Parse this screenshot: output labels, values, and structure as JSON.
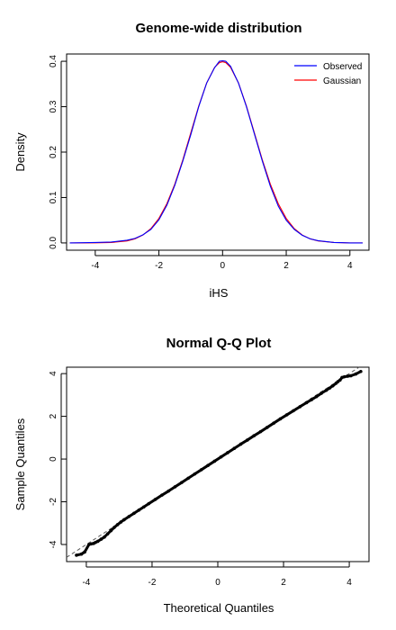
{
  "chart_data": [
    {
      "type": "line",
      "title": "Genome-wide distribution",
      "xlabel": "iHS",
      "ylabel": "Density",
      "xlim": [
        -4.9,
        4.6
      ],
      "ylim": [
        -0.016,
        0.416
      ],
      "xticks": [
        -4,
        -2,
        0,
        2,
        4
      ],
      "yticks": [
        0.0,
        0.1,
        0.2,
        0.3,
        0.4
      ],
      "ytick_labels": [
        "0.0",
        "0.1",
        "0.2",
        "0.3",
        "0.4"
      ],
      "legend_position": "top-right",
      "grid": false,
      "series": [
        {
          "name": "Observed",
          "color": "#0000ff",
          "x": [
            -4.8,
            -4.0,
            -3.5,
            -3.0,
            -2.75,
            -2.5,
            -2.25,
            -2.0,
            -1.75,
            -1.5,
            -1.25,
            -1.0,
            -0.75,
            -0.5,
            -0.25,
            -0.1,
            0.0,
            0.1,
            0.25,
            0.5,
            0.75,
            1.0,
            1.25,
            1.5,
            1.75,
            2.0,
            2.25,
            2.5,
            2.75,
            3.0,
            3.5,
            4.0,
            4.4
          ],
          "y": [
            0.0,
            0.001,
            0.002,
            0.006,
            0.01,
            0.018,
            0.03,
            0.051,
            0.083,
            0.127,
            0.18,
            0.238,
            0.3,
            0.352,
            0.386,
            0.4,
            0.401,
            0.4,
            0.389,
            0.352,
            0.3,
            0.24,
            0.18,
            0.125,
            0.081,
            0.05,
            0.03,
            0.017,
            0.009,
            0.005,
            0.001,
            0.0,
            0.0
          ]
        },
        {
          "name": "Gaussian",
          "color": "#ff0000",
          "x": [
            -4.8,
            -4.0,
            -3.5,
            -3.0,
            -2.75,
            -2.5,
            -2.25,
            -2.0,
            -1.75,
            -1.5,
            -1.25,
            -1.0,
            -0.75,
            -0.5,
            -0.25,
            -0.1,
            0.0,
            0.1,
            0.25,
            0.5,
            0.75,
            1.0,
            1.25,
            1.5,
            1.75,
            2.0,
            2.25,
            2.5,
            2.75,
            3.0,
            3.5,
            4.0,
            4.4
          ],
          "y": [
            0.0,
            0.0001,
            0.0009,
            0.0044,
            0.0091,
            0.0175,
            0.0317,
            0.054,
            0.0863,
            0.1295,
            0.1826,
            0.242,
            0.3011,
            0.3521,
            0.3867,
            0.397,
            0.3989,
            0.397,
            0.3867,
            0.3521,
            0.3011,
            0.242,
            0.1826,
            0.1295,
            0.0863,
            0.054,
            0.0317,
            0.0175,
            0.0091,
            0.0044,
            0.0009,
            0.0001,
            0.0
          ]
        }
      ]
    },
    {
      "type": "scatter",
      "title": "Normal Q-Q Plot",
      "xlabel": "Theoretical Quantiles",
      "ylabel": "Sample Quantiles",
      "xlim": [
        -4.6,
        4.6
      ],
      "ylim": [
        -4.8,
        4.3
      ],
      "xticks": [
        -4,
        -2,
        0,
        2,
        4
      ],
      "yticks": [
        -4,
        -2,
        0,
        2,
        4
      ],
      "grid": false,
      "reference_line": {
        "style": "dashed",
        "slope": 1,
        "intercept": 0,
        "color": "#555555"
      },
      "points_color": "#000000",
      "points": {
        "x": [
          -4.3,
          -4.15,
          -4.05,
          -3.92,
          -3.85,
          -3.78,
          -3.72,
          -3.65,
          -3.55,
          -3.45,
          -3.35,
          -3.25,
          -3.15,
          -3.05,
          -2.95,
          -2.85,
          -2.7,
          -2.55,
          -2.4,
          -2.25,
          -2.1,
          -1.9,
          -1.7,
          -1.5,
          -1.3,
          -1.1,
          -0.9,
          -0.7,
          -0.5,
          -0.3,
          -0.1,
          0.1,
          0.3,
          0.5,
          0.7,
          0.9,
          1.1,
          1.3,
          1.5,
          1.7,
          1.9,
          2.1,
          2.3,
          2.5,
          2.7,
          2.85,
          3.0,
          3.15,
          3.3,
          3.4,
          3.5,
          3.6,
          3.65,
          3.72,
          3.78,
          3.85,
          3.95,
          4.05,
          4.2,
          4.35
        ],
        "y": [
          -4.5,
          -4.45,
          -4.35,
          -4.0,
          -3.97,
          -3.95,
          -3.9,
          -3.85,
          -3.75,
          -3.65,
          -3.5,
          -3.35,
          -3.2,
          -3.07,
          -2.95,
          -2.84,
          -2.69,
          -2.54,
          -2.39,
          -2.24,
          -2.09,
          -1.89,
          -1.69,
          -1.5,
          -1.3,
          -1.1,
          -0.9,
          -0.7,
          -0.5,
          -0.3,
          -0.1,
          0.1,
          0.3,
          0.5,
          0.7,
          0.89,
          1.09,
          1.28,
          1.48,
          1.68,
          1.88,
          2.07,
          2.26,
          2.45,
          2.64,
          2.78,
          2.92,
          3.08,
          3.22,
          3.32,
          3.43,
          3.55,
          3.62,
          3.7,
          3.82,
          3.85,
          3.88,
          3.9,
          3.98,
          4.1
        ]
      }
    }
  ]
}
